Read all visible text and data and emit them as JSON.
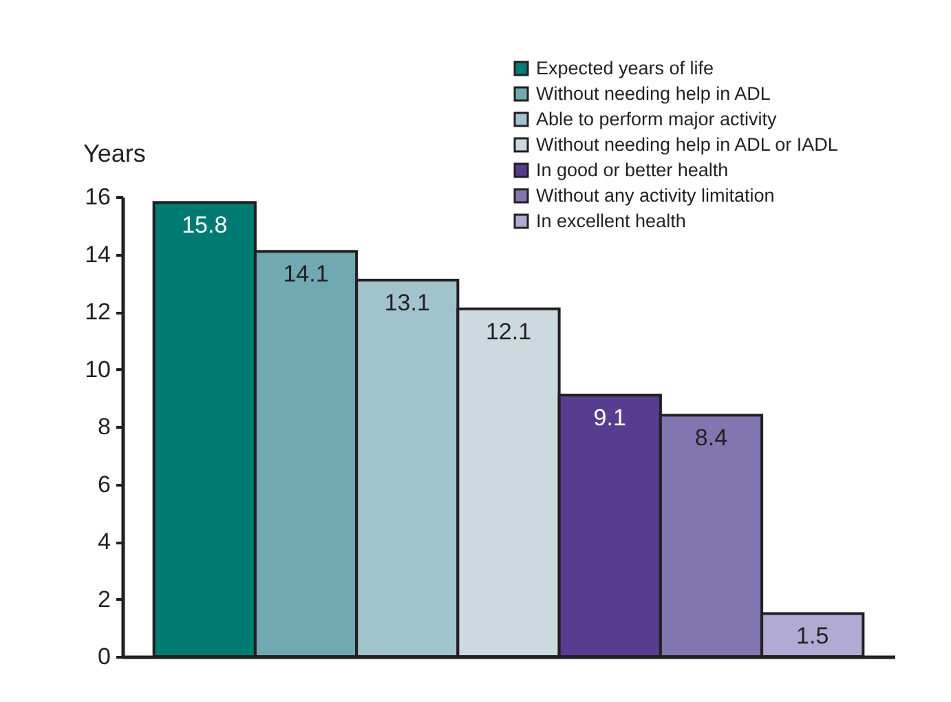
{
  "chart_data": {
    "type": "bar",
    "ylabel": "Years",
    "categories": [
      null,
      null,
      null,
      null,
      null,
      null,
      null
    ],
    "series": [
      {
        "name": "Expected years of life",
        "color": "#007b74",
        "values": [
          15.8,
          null,
          null,
          null,
          null,
          null,
          null
        ]
      },
      {
        "name": "Without needing help in ADL",
        "color": "#70a9b1",
        "values": [
          null,
          14.1,
          null,
          null,
          null,
          null,
          null
        ]
      },
      {
        "name": "Able to perform major activity",
        "color": "#a0c3cc",
        "values": [
          null,
          null,
          13.1,
          null,
          null,
          null,
          null
        ]
      },
      {
        "name": "Without needing help in ADL or IADL",
        "color": "#ccdae0",
        "values": [
          null,
          null,
          null,
          12.1,
          null,
          null,
          null
        ]
      },
      {
        "name": "In good or better health",
        "color": "#553d8f",
        "values": [
          null,
          null,
          null,
          null,
          9.1,
          null,
          null
        ]
      },
      {
        "name": "Without any activity limitation",
        "color": "#8276b0",
        "values": [
          null,
          null,
          null,
          null,
          null,
          8.4,
          null
        ]
      },
      {
        "name": "In excellent health",
        "color": "#b1abd3",
        "values": [
          null,
          null,
          null,
          null,
          null,
          null,
          1.5
        ]
      }
    ],
    "ylim": [
      0,
      16
    ],
    "yticks": [
      0,
      2,
      4,
      6,
      8,
      10,
      12,
      14,
      16
    ],
    "data_labels": true,
    "legend": "top right",
    "grid": false
  }
}
